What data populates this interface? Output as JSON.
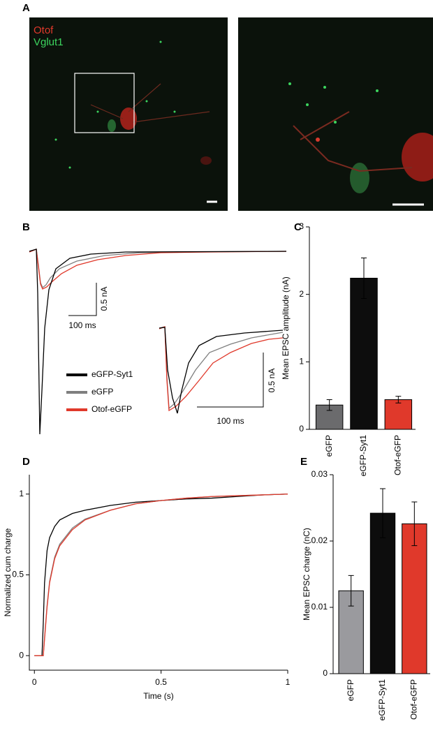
{
  "panel_labels": [
    "A",
    "B",
    "C",
    "D",
    "E"
  ],
  "image": {
    "labels": [
      "Otof",
      "Vglut1"
    ]
  },
  "chart_data": [
    {
      "type": "trace",
      "series": [
        {
          "name": "eGFP-Syt1",
          "color": "#000000"
        },
        {
          "name": "eGFP",
          "color": "#7f7f7f"
        },
        {
          "name": "Otof-eGFP",
          "color": "#e0392b"
        }
      ],
      "scale_bars": {
        "main": {
          "y": "0.5 nA",
          "x": "100 ms"
        },
        "inset": {
          "y": "0.5 nA",
          "x": "100 ms"
        }
      }
    },
    {
      "type": "bar",
      "ylabel": "Mean EPSC amplitude (nA)",
      "categories": [
        "eGFP",
        "eGFP-Syt1",
        "Otof-eGFP"
      ],
      "values": [
        0.36,
        2.24,
        0.44
      ],
      "errors": [
        0.08,
        0.3,
        0.05
      ],
      "colors": [
        "#6b6b6d",
        "#0d0d0d",
        "#e0392b"
      ],
      "ylim": [
        0,
        3
      ],
      "yticks": [
        0,
        1,
        2,
        3
      ]
    },
    {
      "type": "line",
      "xlabel": "Time (s)",
      "ylabel": "Normalized cum charge",
      "x": [
        0,
        0.02,
        0.03,
        0.035,
        0.04,
        0.05,
        0.06,
        0.08,
        0.1,
        0.15,
        0.2,
        0.3,
        0.4,
        0.5,
        0.6,
        0.7,
        0.8,
        0.9,
        1.0
      ],
      "series": [
        {
          "color": "#000000",
          "values": [
            0,
            0,
            0,
            0.2,
            0.45,
            0.65,
            0.73,
            0.8,
            0.84,
            0.88,
            0.9,
            0.93,
            0.95,
            0.96,
            0.97,
            0.975,
            0.985,
            0.995,
            1
          ]
        },
        {
          "color": "#7f7f7f",
          "values": [
            0,
            0,
            0,
            0,
            0.11,
            0.31,
            0.46,
            0.61,
            0.69,
            0.79,
            0.845,
            0.9,
            0.94,
            0.96,
            0.975,
            0.985,
            0.99,
            0.995,
            1
          ]
        },
        {
          "color": "#e0392b",
          "values": [
            0,
            0,
            0,
            0,
            0.1,
            0.3,
            0.45,
            0.6,
            0.68,
            0.78,
            0.84,
            0.9,
            0.94,
            0.96,
            0.975,
            0.985,
            0.99,
            0.995,
            1
          ]
        }
      ],
      "xlim": [
        -0.02,
        1.0
      ],
      "ylim": [
        -0.09,
        1.12
      ],
      "xticks": [
        0,
        0.5,
        1
      ],
      "yticks": [
        0,
        0.5,
        1
      ]
    },
    {
      "type": "bar",
      "ylabel": "Mean EPSC charge  (nC)",
      "categories": [
        "eGFP",
        "eGFP-Syt1",
        "Otof-eGFP"
      ],
      "values": [
        0.0125,
        0.0242,
        0.0226
      ],
      "errors": [
        0.0023,
        0.0037,
        0.0033
      ],
      "colors": [
        "#9a9a9e",
        "#0d0d0d",
        "#e0392b"
      ],
      "ylim": [
        0,
        0.03
      ],
      "yticks": [
        0,
        0.01,
        0.02,
        0.03
      ]
    }
  ]
}
